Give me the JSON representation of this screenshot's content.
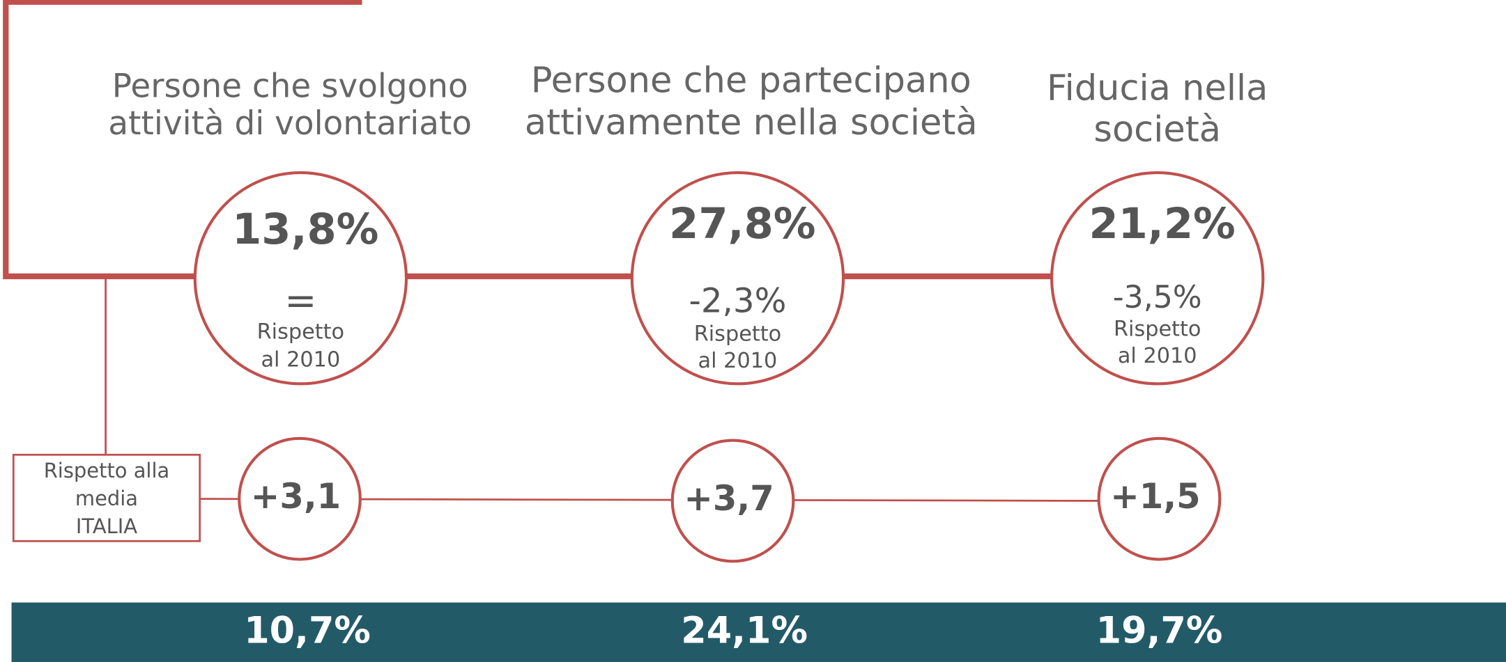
{
  "header_box": {
    "lines": [
      "Rispetto alla",
      "media",
      "ITALIA"
    ]
  },
  "items": [
    {
      "title": [
        "Persone che svolgono",
        "attività di volontariato"
      ],
      "value": "13,8%",
      "change": "=",
      "change_label": [
        "Rispetto",
        "al 2010"
      ],
      "vs_italia": "+3,1",
      "italia_value": "10,7%"
    },
    {
      "title": [
        "Persone che partecipano",
        "attivamente nella società"
      ],
      "value": "27,8%",
      "change": "-2,3%",
      "change_label": [
        "Rispetto",
        "al 2010"
      ],
      "vs_italia": "+3,7",
      "italia_value": "24,1%"
    },
    {
      "title": [
        "Fiducia nella",
        "società"
      ],
      "value": "21,2%",
      "change": "-3,5%",
      "change_label": [
        "Rispetto",
        "al 2010"
      ],
      "vs_italia": "+1,5",
      "italia_value": "19,7%"
    }
  ]
}
